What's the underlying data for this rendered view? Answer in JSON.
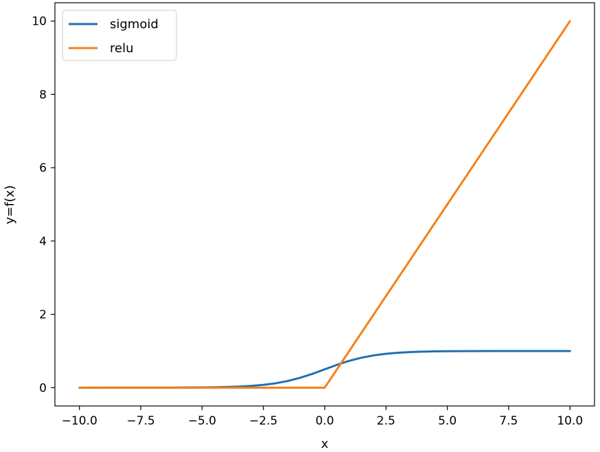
{
  "chart_data": {
    "type": "line",
    "title": "",
    "xlabel": "x",
    "ylabel": "y=f(x)",
    "xlim": [
      -11.0,
      11.0
    ],
    "ylim": [
      -0.5,
      10.5
    ],
    "xticks": [
      -10.0,
      -7.5,
      -5.0,
      -2.5,
      0.0,
      2.5,
      5.0,
      7.5,
      10.0
    ],
    "xtick_labels": [
      "−10.0",
      "−7.5",
      "−5.0",
      "−2.5",
      "0.0",
      "2.5",
      "5.0",
      "7.5",
      "10.0"
    ],
    "yticks": [
      0,
      2,
      4,
      6,
      8,
      10
    ],
    "ytick_labels": [
      "0",
      "2",
      "4",
      "6",
      "8",
      "10"
    ],
    "grid": false,
    "legend": "top-left",
    "series": [
      {
        "name": "sigmoid",
        "color": "#1f6fb2",
        "x": [
          -10,
          -9,
          -8,
          -7,
          -6,
          -5,
          -4.5,
          -4,
          -3.5,
          -3,
          -2.5,
          -2,
          -1.5,
          -1,
          -0.5,
          0,
          0.5,
          1,
          1.5,
          2,
          2.5,
          3,
          3.5,
          4,
          4.5,
          5,
          6,
          7,
          8,
          9,
          10
        ],
        "y": [
          0.0,
          0.0001,
          0.0003,
          0.0009,
          0.0025,
          0.0067,
          0.011,
          0.018,
          0.0293,
          0.0474,
          0.0759,
          0.1192,
          0.1824,
          0.2689,
          0.3775,
          0.5,
          0.6225,
          0.7311,
          0.8176,
          0.8808,
          0.9241,
          0.9526,
          0.9707,
          0.982,
          0.989,
          0.9933,
          0.9975,
          0.9991,
          0.9997,
          0.9999,
          1.0
        ]
      },
      {
        "name": "relu",
        "color": "#f57f17",
        "x": [
          -10,
          0,
          10
        ],
        "y": [
          0,
          0,
          10
        ]
      }
    ]
  }
}
